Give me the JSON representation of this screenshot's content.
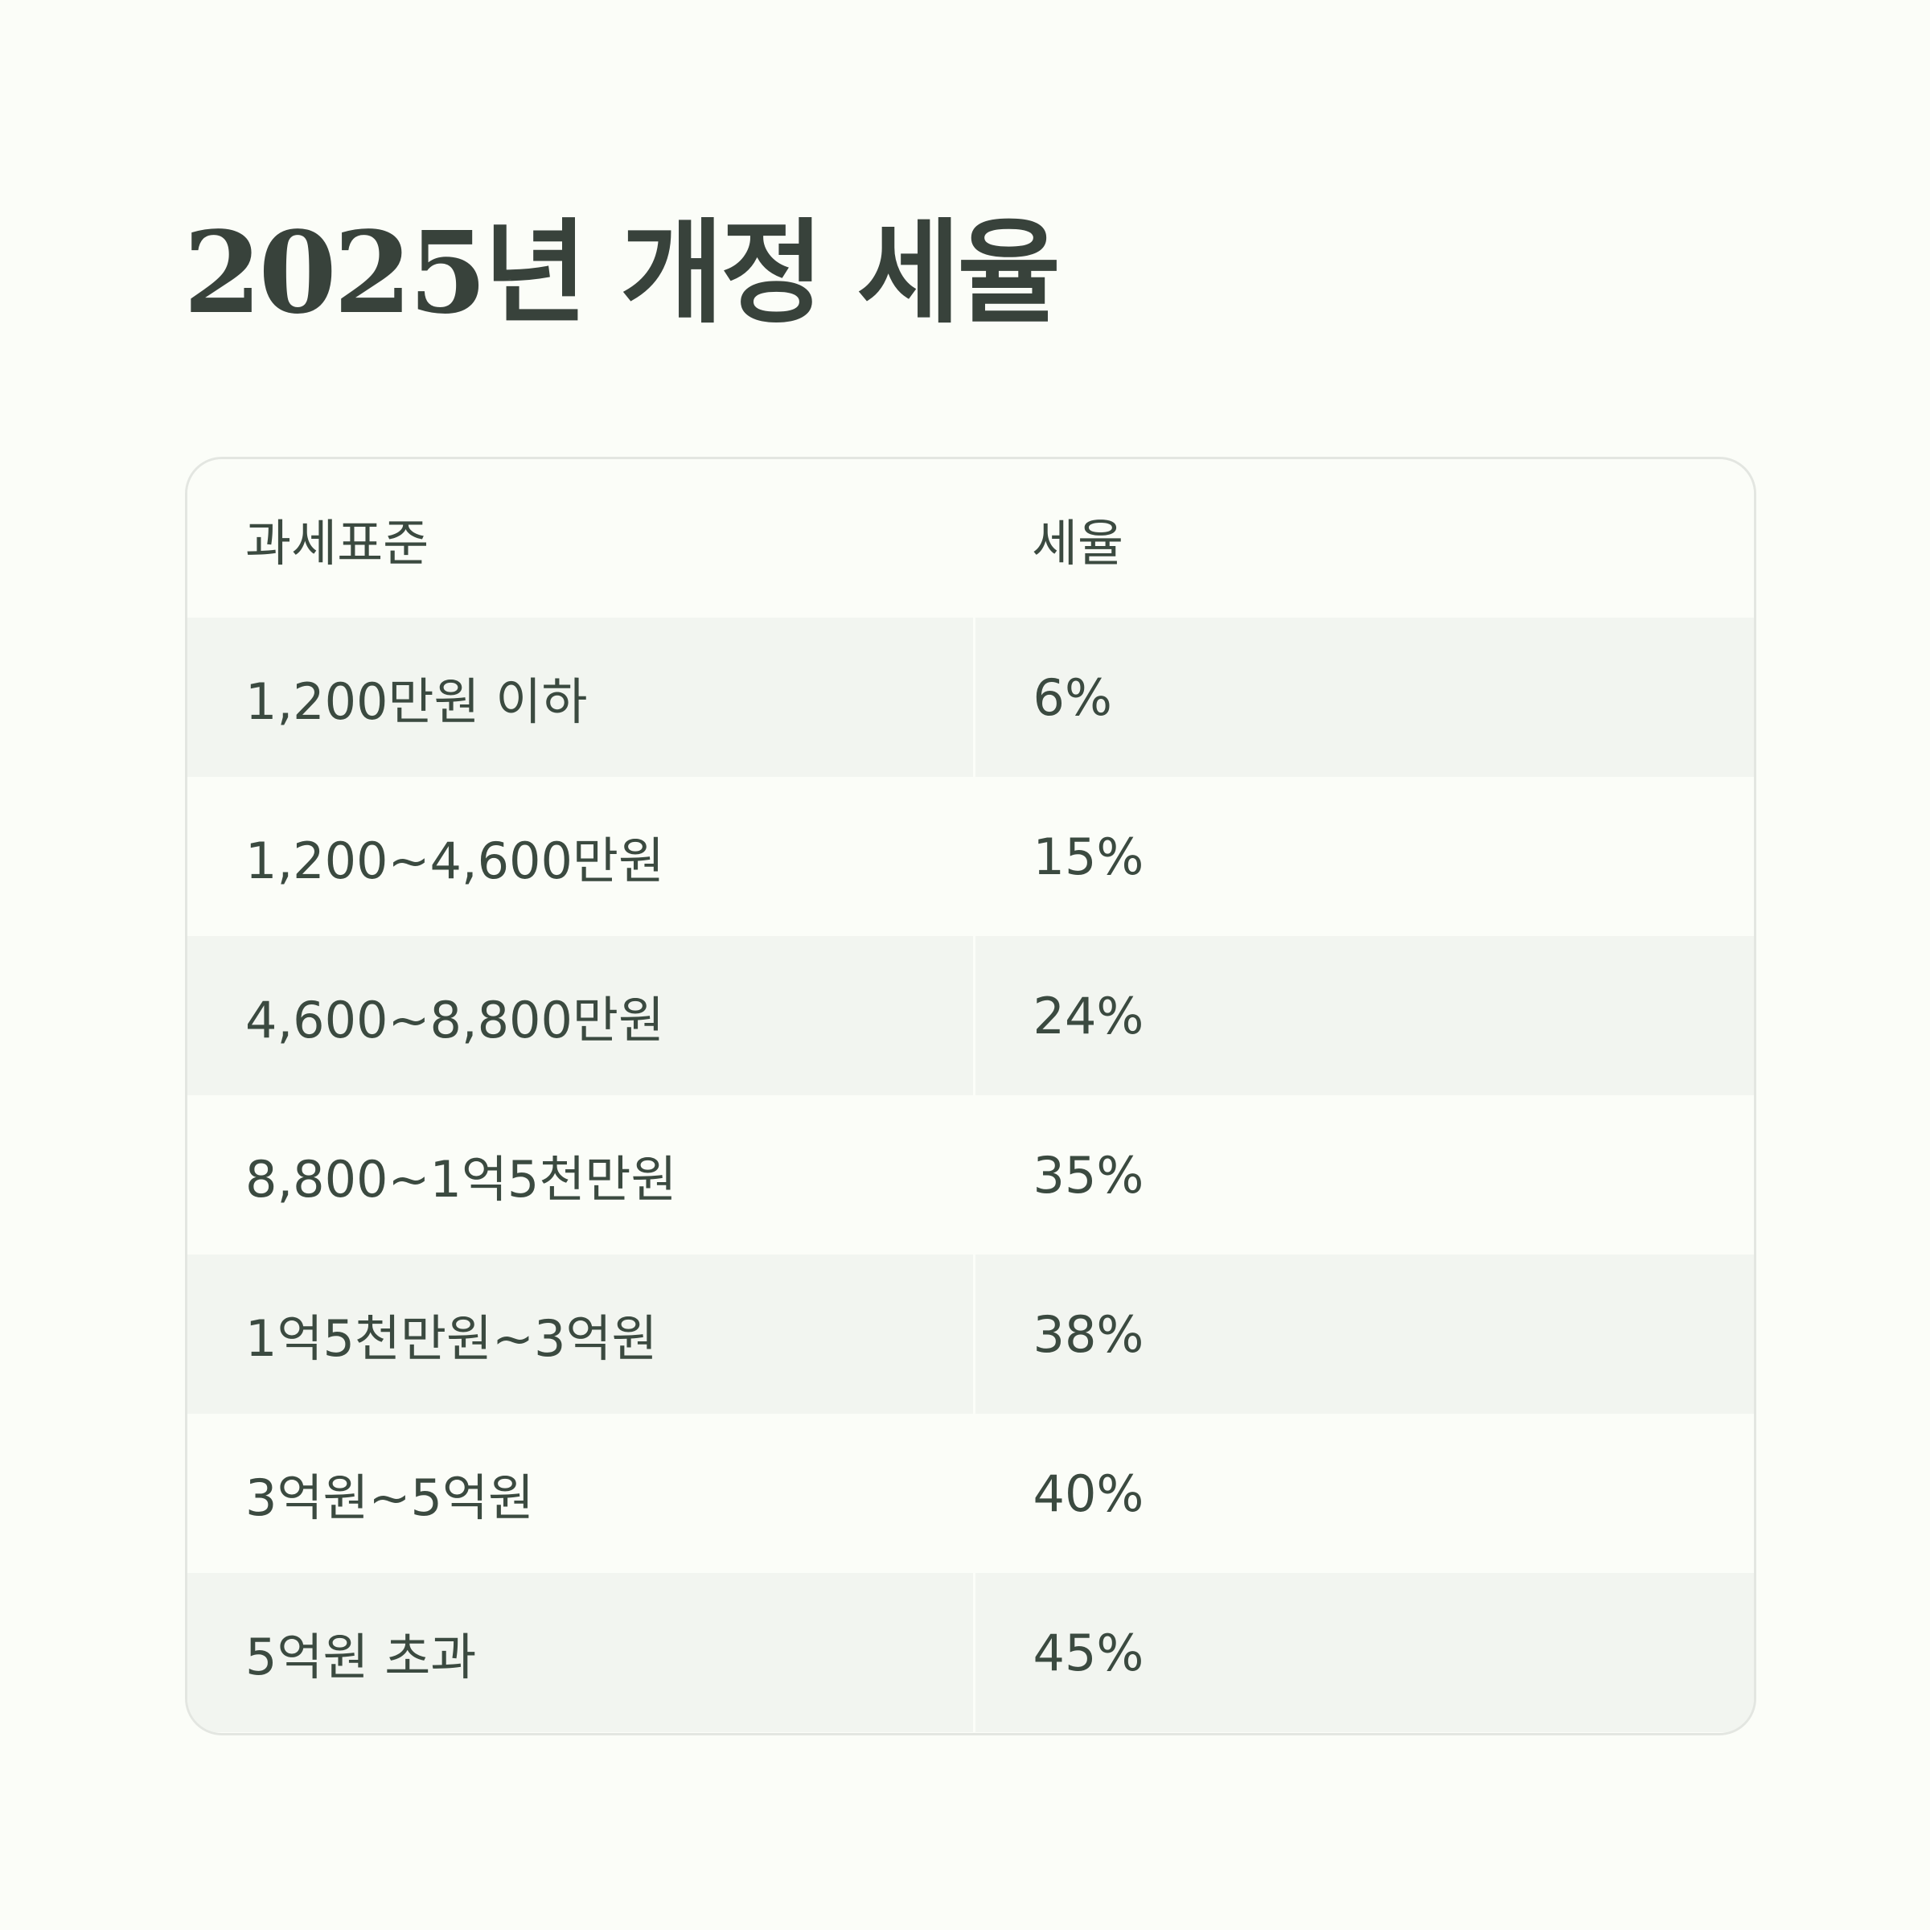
{
  "title": "2025년 개정 세율",
  "table": {
    "headers": [
      "과세표준",
      "세율"
    ],
    "rows": [
      [
        "1,200만원 이하",
        "6%"
      ],
      [
        "1,200~4,600만원",
        "15%"
      ],
      [
        "4,600~8,800만원",
        "24%"
      ],
      [
        "8,800~1억5천만원",
        "35%"
      ],
      [
        "1억5천만원~3억원",
        "38%"
      ],
      [
        "3억원~5억원",
        "40%"
      ],
      [
        "5억원 초과",
        "45%"
      ]
    ]
  },
  "colors": {
    "background": "#fbfdf8",
    "row_alt": "#f2f5f0",
    "text": "#3b4a40",
    "title": "#38423b",
    "border": "#e3e6e1"
  }
}
